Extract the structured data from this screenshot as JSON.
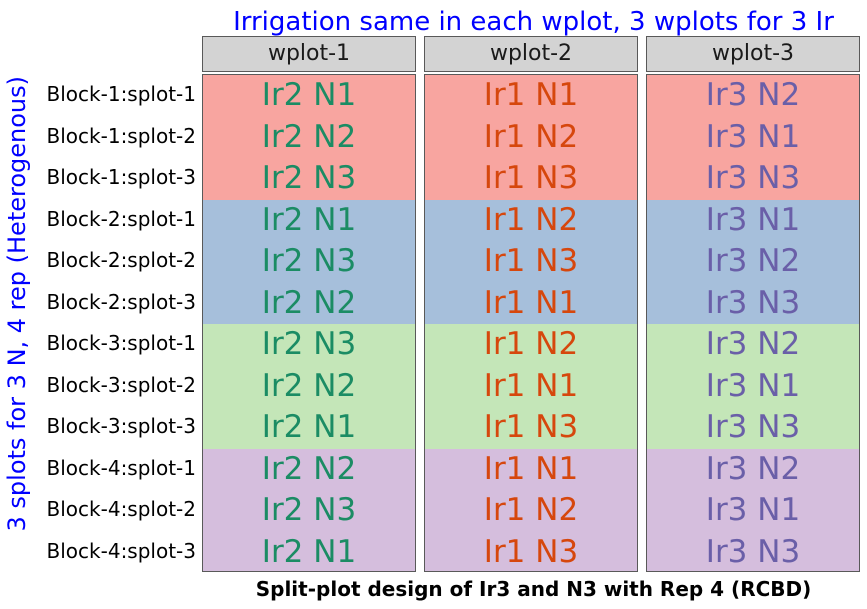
{
  "title": "Irrigation same in each wplot, 3 wplots for 3 Ir",
  "y_title": "3 splots for 3 N, 4 rep (Heterogenous)",
  "caption": "Split-plot design of Ir3 and N3 with Rep 4 (RCBD)",
  "colors": {
    "title": "#0000ff",
    "block_fills": [
      "#f8a5a0",
      "#a6bfdb",
      "#c4e6b8",
      "#d5bedd"
    ],
    "wplot_text": [
      "#1b8c64",
      "#d6470d",
      "#6a5fa8"
    ]
  },
  "row_labels": [
    "Block-1:splot-1",
    "Block-1:splot-2",
    "Block-1:splot-3",
    "Block-2:splot-1",
    "Block-2:splot-2",
    "Block-2:splot-3",
    "Block-3:splot-1",
    "Block-3:splot-2",
    "Block-3:splot-3",
    "Block-4:splot-1",
    "Block-4:splot-2",
    "Block-4:splot-3"
  ],
  "wplots": [
    {
      "label": "wplot-1",
      "cells": [
        "Ir2 N1",
        "Ir2 N2",
        "Ir2 N3",
        "Ir2 N1",
        "Ir2 N3",
        "Ir2 N2",
        "Ir2 N3",
        "Ir2 N2",
        "Ir2 N1",
        "Ir2 N2",
        "Ir2 N3",
        "Ir2 N1"
      ]
    },
    {
      "label": "wplot-2",
      "cells": [
        "Ir1 N1",
        "Ir1 N2",
        "Ir1 N3",
        "Ir1 N2",
        "Ir1 N3",
        "Ir1 N1",
        "Ir1 N2",
        "Ir1 N1",
        "Ir1 N3",
        "Ir1 N1",
        "Ir1 N2",
        "Ir1 N3"
      ]
    },
    {
      "label": "wplot-3",
      "cells": [
        "Ir3 N2",
        "Ir3 N1",
        "Ir3 N3",
        "Ir3 N1",
        "Ir3 N2",
        "Ir3 N3",
        "Ir3 N2",
        "Ir3 N1",
        "Ir3 N3",
        "Ir3 N2",
        "Ir3 N1",
        "Ir3 N3"
      ]
    }
  ]
}
